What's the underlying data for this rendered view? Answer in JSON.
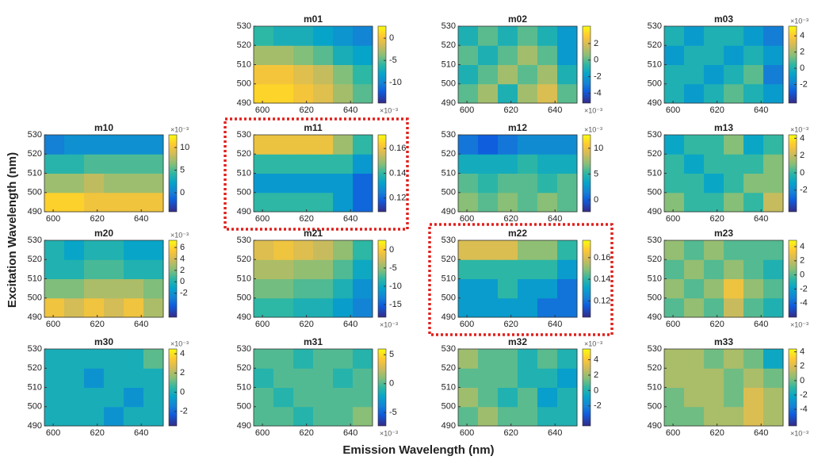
{
  "ylabel": "Excitation Wavelength (nm)",
  "xlabel": "Emission Wavelength (nm)",
  "chart_data": [
    {
      "type": "heatmap",
      "title": "m01",
      "x": [
        600.5,
        609.5,
        618.5,
        627.5,
        636.5,
        645.5
      ],
      "y": [
        495,
        505,
        515,
        525
      ],
      "xlim": [
        596,
        650
      ],
      "ylim": [
        490,
        530
      ],
      "xticks": [
        600,
        620,
        640
      ],
      "yticks": [
        490,
        500,
        510,
        520,
        530
      ],
      "clim": [
        -14.6,
        2.7
      ],
      "cticks": [
        0,
        -5,
        -10
      ],
      "colorbar_label": "×10⁻³",
      "colorbar_label_position": "bottom",
      "z": [
        [
          1,
          1,
          0,
          -1,
          -3,
          -5
        ],
        [
          0,
          0,
          -1,
          -2,
          -4,
          -6
        ],
        [
          -3,
          -3,
          -4,
          -5,
          -7,
          -8
        ],
        [
          -6,
          -7,
          -7,
          -8,
          -9,
          -10
        ]
      ]
    },
    {
      "type": "heatmap",
      "title": "m02",
      "x": [
        600.5,
        609.5,
        618.5,
        627.5,
        636.5,
        645.5
      ],
      "y": [
        495,
        505,
        515,
        525
      ],
      "xlim": [
        596,
        650
      ],
      "ylim": [
        490,
        530
      ],
      "xticks": [
        600,
        620,
        640
      ],
      "yticks": [
        490,
        500,
        510,
        520,
        530
      ],
      "clim": [
        -5.2,
        4.1
      ],
      "cticks": [
        2,
        0,
        -2,
        -4
      ],
      "colorbar_label": "×10⁻³",
      "colorbar_label_position": "bottom",
      "z": [
        [
          0,
          1,
          -1,
          1,
          2,
          0
        ],
        [
          -1,
          0,
          1,
          0,
          1,
          -1
        ],
        [
          0,
          -1,
          0,
          1,
          0,
          -2
        ],
        [
          -1,
          0,
          -1,
          0,
          -1,
          -2
        ]
      ]
    },
    {
      "type": "heatmap",
      "title": "m03",
      "x": [
        600.5,
        609.5,
        618.5,
        627.5,
        636.5,
        645.5
      ],
      "y": [
        495,
        505,
        515,
        525
      ],
      "xlim": [
        596,
        650
      ],
      "ylim": [
        490,
        530
      ],
      "xticks": [
        600,
        620,
        640
      ],
      "yticks": [
        490,
        500,
        510,
        520,
        530
      ],
      "clim": [
        -4.3,
        5.2
      ],
      "cticks": [
        4,
        2,
        0,
        -2
      ],
      "colorbar_label": "×10⁻³",
      "colorbar_label_position": "top",
      "z": [
        [
          0,
          -1,
          0,
          1,
          0,
          -1
        ],
        [
          0,
          0,
          -1,
          0,
          1,
          -2
        ],
        [
          -1,
          0,
          0,
          -1,
          0,
          -1
        ],
        [
          0,
          -1,
          0,
          0,
          -1,
          -2
        ]
      ]
    },
    {
      "type": "heatmap",
      "title": "m10",
      "x": [
        600.5,
        609.5,
        618.5,
        627.5,
        636.5,
        645.5
      ],
      "y": [
        495,
        505,
        515,
        525
      ],
      "xlim": [
        596,
        650
      ],
      "ylim": [
        490,
        530
      ],
      "xticks": [
        600,
        620,
        640
      ],
      "yticks": [
        490,
        500,
        510,
        520,
        530
      ],
      "clim": [
        -4.2,
        12.8
      ],
      "cticks": [
        10,
        5,
        0
      ],
      "colorbar_label": "×10⁻³",
      "colorbar_label_position": "top",
      "z": [
        [
          11,
          11,
          10,
          10,
          10,
          10
        ],
        [
          7,
          7,
          8,
          7,
          7,
          7
        ],
        [
          4,
          4,
          5,
          5,
          5,
          5
        ],
        [
          0,
          1,
          1,
          1,
          1,
          1
        ]
      ]
    },
    {
      "type": "heatmap",
      "title": "m11",
      "x": [
        600.5,
        609.5,
        618.5,
        627.5,
        636.5,
        645.5
      ],
      "y": [
        495,
        505,
        515,
        525
      ],
      "xlim": [
        596,
        650
      ],
      "ylim": [
        490,
        530
      ],
      "xticks": [
        600,
        620,
        640
      ],
      "yticks": [
        490,
        500,
        510,
        520,
        530
      ],
      "clim": [
        0.109,
        0.171
      ],
      "cticks": [
        0.16,
        0.14,
        0.12
      ],
      "highlight": true,
      "highlight_color": "#e0201c",
      "z": [
        [
          0.14,
          0.14,
          0.14,
          0.14,
          0.13,
          0.12
        ],
        [
          0.13,
          0.13,
          0.13,
          0.13,
          0.13,
          0.12
        ],
        [
          0.14,
          0.14,
          0.14,
          0.14,
          0.14,
          0.13
        ],
        [
          0.16,
          0.16,
          0.16,
          0.16,
          0.15,
          0.14
        ]
      ]
    },
    {
      "type": "heatmap",
      "title": "m12",
      "x": [
        600.5,
        609.5,
        618.5,
        627.5,
        636.5,
        645.5
      ],
      "y": [
        495,
        505,
        515,
        525
      ],
      "xlim": [
        596,
        650
      ],
      "ylim": [
        490,
        530
      ],
      "xticks": [
        600,
        620,
        640
      ],
      "yticks": [
        490,
        500,
        510,
        520,
        530
      ],
      "clim": [
        -2.3,
        12.6
      ],
      "cticks": [
        10,
        5,
        0
      ],
      "colorbar_label": "×10⁻³",
      "colorbar_label_position": "top",
      "z": [
        [
          7,
          6,
          7,
          6,
          7,
          6
        ],
        [
          6,
          5,
          6,
          6,
          5,
          6
        ],
        [
          4,
          4,
          4,
          5,
          4,
          4
        ],
        [
          1,
          0,
          1,
          2,
          2,
          2
        ]
      ]
    },
    {
      "type": "heatmap",
      "title": "m13",
      "x": [
        600.5,
        609.5,
        618.5,
        627.5,
        636.5,
        645.5
      ],
      "y": [
        495,
        505,
        515,
        525
      ],
      "xlim": [
        596,
        650
      ],
      "ylim": [
        490,
        530
      ],
      "xticks": [
        600,
        620,
        640
      ],
      "yticks": [
        490,
        500,
        510,
        520,
        530
      ],
      "clim": [
        -4.5,
        4.4
      ],
      "cticks": [
        4,
        2,
        0,
        -2
      ],
      "colorbar_label": "×10⁻³",
      "colorbar_label_position": "top",
      "z": [
        [
          1,
          0,
          0,
          1,
          0,
          2
        ],
        [
          0,
          0,
          -1,
          0,
          1,
          1
        ],
        [
          0,
          -1,
          0,
          0,
          0,
          1
        ],
        [
          -1,
          0,
          0,
          1,
          -1,
          0
        ]
      ]
    },
    {
      "type": "heatmap",
      "title": "m20",
      "x": [
        600.5,
        609.5,
        618.5,
        627.5,
        636.5,
        645.5
      ],
      "y": [
        495,
        505,
        515,
        525
      ],
      "xlim": [
        596,
        650
      ],
      "ylim": [
        490,
        530
      ],
      "xticks": [
        600,
        620,
        640
      ],
      "yticks": [
        490,
        500,
        510,
        520,
        530
      ],
      "clim": [
        -6.2,
        7.25
      ],
      "cticks": [
        6,
        4,
        2,
        0,
        -2
      ],
      "colorbar_label": "×10⁻³",
      "colorbar_label_position": "top",
      "z": [
        [
          5,
          4,
          5,
          4,
          5,
          3
        ],
        [
          2,
          2,
          3,
          3,
          3,
          2
        ],
        [
          0,
          0,
          1,
          1,
          0,
          0
        ],
        [
          0,
          -1,
          0,
          0,
          -1,
          -1
        ]
      ]
    },
    {
      "type": "heatmap",
      "title": "m21",
      "x": [
        600.5,
        609.5,
        618.5,
        627.5,
        636.5,
        645.5
      ],
      "y": [
        495,
        505,
        515,
        525
      ],
      "xlim": [
        596,
        650
      ],
      "ylim": [
        490,
        530
      ],
      "xticks": [
        600,
        620,
        640
      ],
      "yticks": [
        490,
        500,
        510,
        520,
        530
      ],
      "clim": [
        -18.5,
        2.6
      ],
      "cticks": [
        0,
        -5,
        -10,
        -15
      ],
      "colorbar_label": "×10⁻³",
      "colorbar_label_position": "bottom",
      "z": [
        [
          -8,
          -8,
          -9,
          -9,
          -11,
          -13
        ],
        [
          -6,
          -6,
          -7,
          -7,
          -9,
          -12
        ],
        [
          -4,
          -4,
          -5,
          -5,
          -7,
          -10
        ],
        [
          -2,
          -1,
          -2,
          -3,
          -5,
          -8
        ]
      ]
    },
    {
      "type": "heatmap",
      "title": "m22",
      "x": [
        600.5,
        609.5,
        618.5,
        627.5,
        636.5,
        645.5
      ],
      "y": [
        495,
        505,
        515,
        525
      ],
      "xlim": [
        596,
        650
      ],
      "ylim": [
        490,
        530
      ],
      "xticks": [
        600,
        620,
        640
      ],
      "yticks": [
        490,
        500,
        510,
        520,
        530
      ],
      "clim": [
        0.105,
        0.176
      ],
      "cticks": [
        0.16,
        0.14,
        0.12
      ],
      "highlight": true,
      "highlight_color": "#e0201c",
      "z": [
        [
          0.13,
          0.13,
          0.13,
          0.13,
          0.12,
          0.12
        ],
        [
          0.13,
          0.13,
          0.14,
          0.13,
          0.13,
          0.12
        ],
        [
          0.14,
          0.14,
          0.14,
          0.14,
          0.14,
          0.13
        ],
        [
          0.16,
          0.16,
          0.16,
          0.15,
          0.15,
          0.14
        ]
      ]
    },
    {
      "type": "heatmap",
      "title": "m23",
      "x": [
        600.5,
        609.5,
        618.5,
        627.5,
        636.5,
        645.5
      ],
      "y": [
        495,
        505,
        515,
        525
      ],
      "xlim": [
        596,
        650
      ],
      "ylim": [
        490,
        530
      ],
      "xticks": [
        600,
        620,
        640
      ],
      "yticks": [
        490,
        500,
        510,
        520,
        530
      ],
      "clim": [
        -6,
        4.9
      ],
      "cticks": [
        4,
        2,
        0,
        -2,
        -4
      ],
      "colorbar_label": "×10⁻³",
      "colorbar_label_position": "bottom",
      "z": [
        [
          0,
          1,
          0,
          2,
          0,
          -1
        ],
        [
          1,
          0,
          1,
          3,
          1,
          0
        ],
        [
          0,
          1,
          0,
          1,
          0,
          -1
        ],
        [
          1,
          0,
          1,
          0,
          0,
          0
        ]
      ]
    },
    {
      "type": "heatmap",
      "title": "m30",
      "x": [
        600.5,
        609.5,
        618.5,
        627.5,
        636.5,
        645.5
      ],
      "y": [
        495,
        505,
        515,
        525
      ],
      "xlim": [
        596,
        650
      ],
      "ylim": [
        490,
        530
      ],
      "xticks": [
        600,
        620,
        640
      ],
      "yticks": [
        490,
        500,
        510,
        520,
        530
      ],
      "clim": [
        -3.5,
        4.5
      ],
      "cticks": [
        4,
        2,
        0,
        -2
      ],
      "colorbar_label": "×10⁻³",
      "colorbar_label_position": "top",
      "z": [
        [
          0,
          0,
          0,
          -1,
          0,
          0
        ],
        [
          0,
          0,
          0,
          0,
          -1,
          0
        ],
        [
          0,
          0,
          -1,
          0,
          0,
          0
        ],
        [
          0,
          0,
          0,
          0,
          0,
          1
        ]
      ]
    },
    {
      "type": "heatmap",
      "title": "m31",
      "x": [
        600.5,
        609.5,
        618.5,
        627.5,
        636.5,
        645.5
      ],
      "y": [
        495,
        505,
        515,
        525
      ],
      "xlim": [
        596,
        650
      ],
      "ylim": [
        490,
        530
      ],
      "xticks": [
        600,
        620,
        640
      ],
      "yticks": [
        490,
        500,
        510,
        520,
        530
      ],
      "clim": [
        -7.3,
        6
      ],
      "cticks": [
        5,
        0,
        -5
      ],
      "colorbar_label": "×10⁻³",
      "colorbar_label_position": "bottom",
      "z": [
        [
          0,
          0,
          -1,
          0,
          0,
          1
        ],
        [
          0,
          -1,
          0,
          0,
          0,
          0
        ],
        [
          -1,
          0,
          0,
          0,
          -1,
          0
        ],
        [
          0,
          0,
          -1,
          0,
          0,
          -1
        ]
      ]
    },
    {
      "type": "heatmap",
      "title": "m32",
      "x": [
        600.5,
        609.5,
        618.5,
        627.5,
        636.5,
        645.5
      ],
      "y": [
        495,
        505,
        515,
        525
      ],
      "xlim": [
        596,
        650
      ],
      "ylim": [
        490,
        530
      ],
      "xticks": [
        600,
        620,
        640
      ],
      "yticks": [
        490,
        500,
        510,
        520,
        530
      ],
      "clim": [
        -4.6,
        5.4
      ],
      "cticks": [
        4,
        2,
        0,
        -2
      ],
      "colorbar_label": "×10⁻³",
      "colorbar_label_position": "top",
      "z": [
        [
          1,
          2,
          1,
          1,
          0,
          0
        ],
        [
          2,
          1,
          0,
          1,
          -1,
          0
        ],
        [
          1,
          1,
          1,
          0,
          0,
          -1
        ],
        [
          2,
          1,
          1,
          0,
          1,
          0
        ]
      ]
    },
    {
      "type": "heatmap",
      "title": "m33",
      "x": [
        600.5,
        609.5,
        618.5,
        627.5,
        636.5,
        645.5
      ],
      "y": [
        495,
        505,
        515,
        525
      ],
      "xlim": [
        596,
        650
      ],
      "ylim": [
        490,
        530
      ],
      "xticks": [
        600,
        620,
        640
      ],
      "yticks": [
        490,
        500,
        510,
        520,
        530
      ],
      "clim": [
        -6.3,
        4.4
      ],
      "cticks": [
        4,
        2,
        0,
        -2,
        -4
      ],
      "colorbar_label": "×10⁻³",
      "colorbar_label_position": "bottom",
      "z": [
        [
          0,
          0,
          1,
          1,
          2,
          1
        ],
        [
          0,
          1,
          1,
          0,
          2,
          1
        ],
        [
          1,
          1,
          1,
          0,
          1,
          0
        ],
        [
          1,
          1,
          0,
          1,
          0,
          -2
        ]
      ]
    }
  ]
}
